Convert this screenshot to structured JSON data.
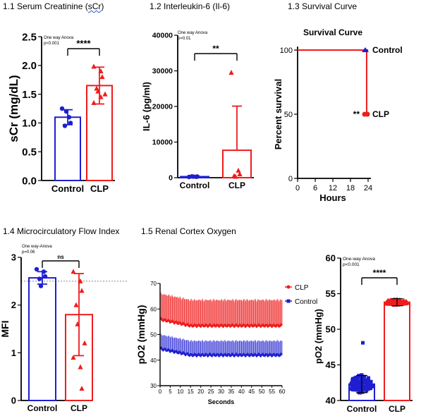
{
  "captions": {
    "p1": "1.1 Serum Creatinine (",
    "p1_sq": "sCr",
    "p1_end": ")",
    "p2": "1.2  Interleukin-6 (Il-6)",
    "p3": "1.3  Survival Curve",
    "p4": "1.4 Microcirculatory Flow Index",
    "p5": "1.5 Renal Cortex Oxygen"
  },
  "colors": {
    "control": "#1f1fd0",
    "clp": "#ee1c1c"
  },
  "chart_data": [
    {
      "id": "scr",
      "type": "bar",
      "categories": [
        "Control",
        "CLP"
      ],
      "values": [
        1.1,
        1.65
      ],
      "errors": [
        0.13,
        0.32
      ],
      "points": [
        [
          1.25,
          1.1,
          1.0,
          0.95,
          1.2
        ],
        [
          1.98,
          1.9,
          1.8,
          1.6,
          1.55,
          1.5,
          1.35,
          1.45
        ]
      ],
      "ylabel": "sCr (mg/dL)",
      "ylim": [
        0,
        2.5
      ],
      "yticks": [
        "0.0",
        "0.5",
        "1.0",
        "1.5",
        "2.0",
        "2.5"
      ],
      "annotation": [
        "One way Anova",
        "p<0.001"
      ],
      "significance": "****"
    },
    {
      "id": "il6",
      "type": "bar",
      "categories": [
        "Control",
        "CLP"
      ],
      "values": [
        300,
        7700
      ],
      "errors": [
        100,
        12400
      ],
      "points": [
        [
          200,
          250,
          300,
          350,
          300
        ],
        [
          29500,
          2000,
          1000,
          500,
          300
        ]
      ],
      "ylabel": "IL-6 (pg/ml)",
      "ylim": [
        0,
        40000
      ],
      "yticks": [
        "0",
        "10000",
        "20000",
        "30000",
        "40000"
      ],
      "annotation": [
        "One way Anova",
        "p=0.01"
      ],
      "significance": "**"
    },
    {
      "id": "survival",
      "type": "line",
      "title": "Survival Curve",
      "xlabel": "Hours",
      "ylabel": "Percent survival",
      "xlim": [
        0,
        24
      ],
      "ylim": [
        0,
        100
      ],
      "xticks": [
        "0",
        "6",
        "12",
        "18",
        "24"
      ],
      "yticks": [
        "0",
        "50",
        "100"
      ],
      "series": [
        {
          "name": "Control",
          "x": [
            0,
            24
          ],
          "y": [
            100,
            100
          ]
        },
        {
          "name": "CLP",
          "x": [
            0,
            23.5,
            23.5,
            24
          ],
          "y": [
            100,
            100,
            50,
            50
          ]
        }
      ],
      "significance": "**"
    },
    {
      "id": "mfi",
      "type": "bar",
      "categories": [
        "Control",
        "CLP"
      ],
      "values": [
        2.57,
        1.8
      ],
      "errors": [
        0.13,
        0.86
      ],
      "points": [
        [
          2.75,
          2.7,
          2.6,
          2.55,
          2.4
        ],
        [
          2.7,
          2.5,
          2.3,
          2.0,
          1.6,
          1.2,
          0.9,
          0.7,
          0.25
        ]
      ],
      "ylabel": "MFI",
      "ylim": [
        0,
        3
      ],
      "yticks": [
        "0",
        "1",
        "2",
        "3"
      ],
      "refline": 2.5,
      "annotation": [
        "One way-Anova",
        "p=0.06"
      ],
      "significance": "ns"
    },
    {
      "id": "po2_time",
      "type": "line",
      "xlabel": "Seconds",
      "ylabel": "pO2 (mmHg)",
      "xlim": [
        0,
        60
      ],
      "ylim": [
        30,
        70
      ],
      "xticks": [
        "0",
        "5",
        "10",
        "15",
        "20",
        "25",
        "30",
        "35",
        "40",
        "45",
        "50",
        "55",
        "60"
      ],
      "yticks": [
        "30",
        "40",
        "50",
        "60",
        "70"
      ],
      "series": [
        {
          "name": "CLP",
          "mean_start": 56,
          "mean_end": 53.5,
          "sd": 10
        },
        {
          "name": "Control",
          "mean_start": 44.5,
          "mean_end": 42,
          "sd": 5.5
        }
      ]
    },
    {
      "id": "po2_group",
      "type": "bar",
      "categories": [
        "Control",
        "CLP"
      ],
      "values": [
        42.3,
        53.8
      ],
      "errors": [
        1.2,
        0.5
      ],
      "ylabel": "pO2 (mmHg)",
      "ylim": [
        40,
        60
      ],
      "yticks": [
        "40",
        "45",
        "50",
        "55",
        "60"
      ],
      "annotation": [
        "One-way Anova",
        "p<0.001"
      ],
      "significance": "****"
    }
  ]
}
